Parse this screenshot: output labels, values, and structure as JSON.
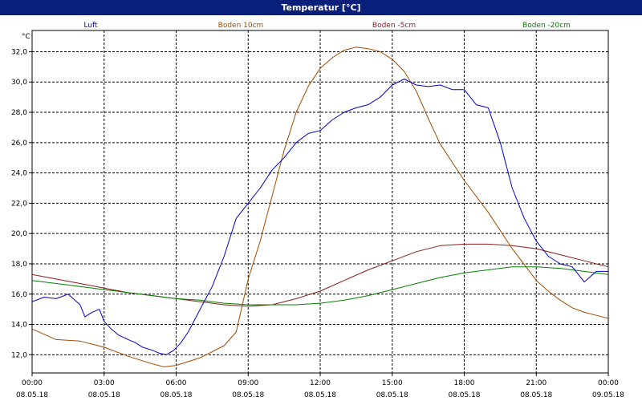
{
  "window": {
    "title": "Temperatur [°C]"
  },
  "chart_data": {
    "type": "line",
    "title": "Temperatur [°C]",
    "ylabel": "°C",
    "xlabel": "",
    "ylim": [
      10.8,
      33.4
    ],
    "xlim_hours": [
      0,
      24
    ],
    "grid": true,
    "legend": "top",
    "y_ticks": [
      "12,0",
      "14,0",
      "16,0",
      "18,0",
      "20,0",
      "22,0",
      "24,0",
      "26,0",
      "28,0",
      "30,0",
      "32,0"
    ],
    "x_ticks": [
      {
        "time": "00:00",
        "date": "08.05.18"
      },
      {
        "time": "03:00",
        "date": "08.05.18"
      },
      {
        "time": "06:00",
        "date": "08.05.18"
      },
      {
        "time": "09:00",
        "date": "08.05.18"
      },
      {
        "time": "12:00",
        "date": "08.05.18"
      },
      {
        "time": "15:00",
        "date": "08.05.18"
      },
      {
        "time": "18:00",
        "date": "08.05.18"
      },
      {
        "time": "21:00",
        "date": "08.05.18"
      },
      {
        "time": "00:00",
        "date": "09.05.18"
      }
    ],
    "series": [
      {
        "name": "Luft",
        "color": "#0000cc",
        "x": [
          0,
          0.5,
          1,
          1.5,
          2,
          2.2,
          2.5,
          2.8,
          3,
          3.3,
          3.6,
          4,
          4.3,
          4.6,
          5,
          5.3,
          5.6,
          5.9,
          6.2,
          6.5,
          7,
          7.5,
          8,
          8.5,
          9,
          9.5,
          10,
          10.5,
          11,
          11.5,
          12,
          12.5,
          13,
          13.5,
          14,
          14.5,
          15,
          15.5,
          16,
          16.5,
          17,
          17.5,
          18,
          18.5,
          19,
          19.5,
          20,
          20.5,
          21,
          21.5,
          22,
          22.5,
          23,
          23.5,
          24
        ],
        "values": [
          15.5,
          15.8,
          15.7,
          16,
          15.3,
          14.5,
          14.8,
          15,
          14.2,
          13.7,
          13.3,
          13,
          12.8,
          12.5,
          12.3,
          12.1,
          12.0,
          12.3,
          12.8,
          13.5,
          15,
          16.5,
          18.5,
          21,
          22,
          23,
          24.2,
          25,
          26,
          26.6,
          26.8,
          27.5,
          28,
          28.3,
          28.5,
          29,
          29.8,
          30.2,
          29.8,
          29.7,
          29.8,
          29.5,
          29.5,
          28.5,
          28.3,
          26,
          23,
          21,
          19.5,
          18.5,
          18,
          17.8,
          16.8,
          17.5,
          17.5
        ]
      },
      {
        "name": "Boden 10cm",
        "color": "#a04a00",
        "x": [
          0,
          1,
          2,
          3,
          4,
          5,
          5.5,
          6,
          7,
          8,
          8.5,
          9,
          9.5,
          10,
          10.5,
          11,
          11.5,
          12,
          12.5,
          13,
          13.5,
          14,
          14.5,
          15,
          15.5,
          16,
          16.5,
          17,
          17.5,
          18,
          19,
          20,
          21,
          21.5,
          22,
          22.5,
          23,
          23.5,
          24
        ],
        "values": [
          13.7,
          13.0,
          12.9,
          12.5,
          11.9,
          11.4,
          11.2,
          11.3,
          11.8,
          12.6,
          13.5,
          17.0,
          19.5,
          22.5,
          25.5,
          28.0,
          29.7,
          30.9,
          31.6,
          32.1,
          32.3,
          32.2,
          32.0,
          31.5,
          30.7,
          29.4,
          27.6,
          25.9,
          24.7,
          23.5,
          21.4,
          19.0,
          16.9,
          16.2,
          15.6,
          15.1,
          14.8,
          14.6,
          14.4
        ]
      },
      {
        "name": "Boden -5cm",
        "color": "#8b1a1a",
        "x": [
          0,
          1,
          2,
          3,
          4,
          5,
          6,
          7,
          8,
          9,
          10,
          11,
          12,
          13,
          14,
          15,
          16,
          17,
          18,
          19,
          20,
          21,
          22,
          23,
          24
        ],
        "values": [
          17.3,
          17.0,
          16.7,
          16.4,
          16.1,
          15.9,
          15.7,
          15.5,
          15.3,
          15.2,
          15.3,
          15.7,
          16.2,
          16.9,
          17.6,
          18.2,
          18.8,
          19.2,
          19.3,
          19.3,
          19.2,
          19.0,
          18.6,
          18.2,
          17.8
        ]
      },
      {
        "name": "Boden -20cm",
        "color": "#008000",
        "x": [
          0,
          1,
          2,
          3,
          4,
          5,
          6,
          7,
          8,
          9,
          10,
          11,
          12,
          13,
          14,
          15,
          16,
          17,
          18,
          19,
          20,
          21,
          22,
          23,
          24
        ],
        "values": [
          16.9,
          16.7,
          16.5,
          16.3,
          16.1,
          15.9,
          15.7,
          15.6,
          15.4,
          15.3,
          15.3,
          15.3,
          15.4,
          15.6,
          15.9,
          16.3,
          16.7,
          17.1,
          17.4,
          17.6,
          17.8,
          17.8,
          17.7,
          17.5,
          17.3
        ]
      }
    ]
  }
}
